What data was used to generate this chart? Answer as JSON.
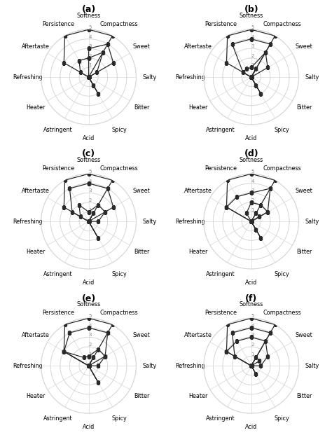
{
  "categories": [
    "Softness",
    "Compactness",
    "Sweet",
    "Salty",
    "Bitter",
    "Spicy",
    "Acid",
    "Astringent",
    "Heater",
    "Refreshing",
    "Aftertaste",
    "Persistence"
  ],
  "n_categories": 12,
  "rmax": 5,
  "rticks": [
    1,
    2,
    3,
    4,
    5
  ],
  "panels": [
    {
      "label": "(a)",
      "series": [
        [
          5,
          5,
          0,
          0,
          0,
          0,
          0,
          0,
          0,
          0,
          3,
          5
        ],
        [
          3,
          4,
          3,
          0,
          0,
          0,
          0,
          0,
          0,
          0,
          0,
          0
        ],
        [
          2,
          3,
          1,
          0,
          0,
          1,
          0,
          0,
          0,
          0,
          1,
          2
        ],
        [
          0,
          0,
          0,
          0,
          0,
          2,
          0,
          0,
          0,
          0,
          0,
          0
        ]
      ]
    },
    {
      "label": "(b)",
      "series": [
        [
          5,
          5,
          0,
          0,
          0,
          0,
          0,
          0,
          0,
          0,
          3,
          5
        ],
        [
          4,
          4,
          0,
          0,
          0,
          0,
          0,
          0,
          0,
          0,
          1,
          4
        ],
        [
          1,
          3,
          2,
          0,
          0,
          1,
          0,
          0,
          0,
          0,
          1,
          1
        ],
        [
          0,
          1,
          0,
          0,
          0,
          2,
          0,
          0,
          0,
          0,
          0,
          0
        ]
      ]
    },
    {
      "label": "(c)",
      "series": [
        [
          5,
          5,
          0,
          0,
          0,
          0,
          0,
          0,
          0,
          0,
          3,
          5
        ],
        [
          4,
          4,
          3,
          0,
          0,
          0,
          0,
          0,
          0,
          0,
          2,
          4
        ],
        [
          1,
          2,
          2,
          1,
          0,
          0,
          0,
          0,
          0,
          0,
          1,
          2
        ],
        [
          0,
          1,
          0,
          0,
          0,
          2,
          0,
          0,
          0,
          0,
          0,
          0
        ]
      ]
    },
    {
      "label": "(d)",
      "series": [
        [
          5,
          5,
          0,
          0,
          0,
          0,
          0,
          0,
          0,
          0,
          3,
          5
        ],
        [
          3,
          4,
          2,
          0,
          0,
          0,
          0,
          0,
          0,
          0,
          3,
          3
        ],
        [
          2,
          2,
          2,
          0,
          0,
          1,
          0,
          0,
          0,
          0,
          0,
          1
        ],
        [
          0,
          1,
          1,
          0,
          0,
          2,
          0,
          0,
          0,
          0,
          0,
          0
        ]
      ]
    },
    {
      "label": "(e)",
      "series": [
        [
          5,
          5,
          0,
          0,
          0,
          0,
          0,
          0,
          0,
          0,
          3,
          5
        ],
        [
          4,
          4,
          2,
          0,
          0,
          0,
          0,
          0,
          0,
          0,
          3,
          4
        ],
        [
          1,
          2,
          2,
          1,
          0,
          0,
          0,
          0,
          0,
          0,
          3,
          1
        ],
        [
          0,
          1,
          0,
          0,
          0,
          2,
          0,
          0,
          0,
          0,
          0,
          0
        ]
      ]
    },
    {
      "label": "(f)",
      "series": [
        [
          5,
          5,
          0,
          0,
          0,
          0,
          0,
          0,
          0,
          0,
          3,
          5
        ],
        [
          4,
          4,
          0,
          0,
          0,
          0,
          0,
          0,
          0,
          0,
          2,
          4
        ],
        [
          3,
          3,
          2,
          1,
          0,
          1,
          0,
          0,
          0,
          0,
          3,
          3
        ],
        [
          0,
          1,
          1,
          0,
          0,
          0,
          0,
          0,
          0,
          0,
          0,
          0
        ]
      ]
    }
  ],
  "line_color": "#2a2a2a",
  "marker": "s",
  "marker_size": 3.5,
  "line_width": 0.9,
  "grid_color": "#d8d8d8",
  "label_fontsize": 5.8,
  "title_fontsize": 9,
  "tick_fontsize": 5,
  "bg_color": "#ffffff"
}
